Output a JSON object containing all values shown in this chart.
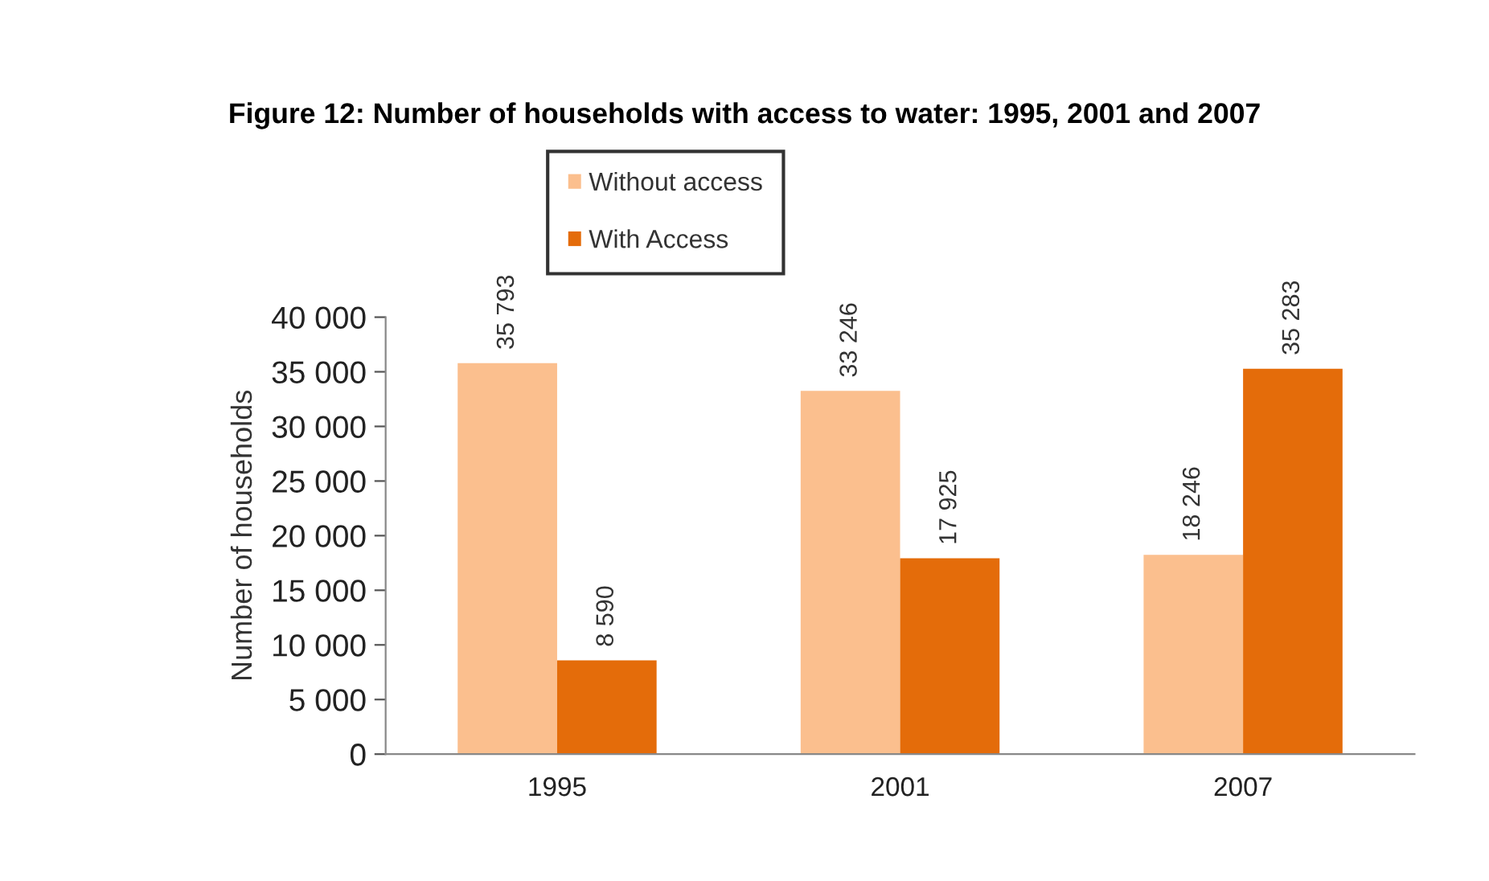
{
  "chart_data": {
    "type": "bar",
    "title": "Figure 12: Number of households with access to water: 1995, 2001 and 2007",
    "ylabel": "Number of households",
    "categories": [
      "1995",
      "2001",
      "2007"
    ],
    "series": [
      {
        "name": "Without access",
        "color": "#fbbf8e",
        "values": [
          35793,
          33246,
          18246
        ],
        "value_labels": [
          "35 793",
          "33 246",
          "18 246"
        ]
      },
      {
        "name": "With Access",
        "color": "#e46c0a",
        "values": [
          8590,
          17925,
          35283
        ],
        "value_labels": [
          "8 590",
          "17 925",
          "35 283"
        ]
      }
    ],
    "ylim": [
      0,
      40000
    ],
    "yticks": [
      0,
      {
        "value": 5000,
        "label": "5 000"
      },
      {
        "value": 10000,
        "label": "10 000"
      },
      {
        "value": 15000,
        "label": "15 000"
      },
      {
        "value": 20000,
        "label": "20 000"
      },
      {
        "value": 25000,
        "label": "25 000"
      },
      {
        "value": 30000,
        "label": "30 000"
      },
      {
        "value": 35000,
        "label": "35 000"
      },
      {
        "value": 40000,
        "label": "40 000"
      }
    ],
    "grid": false,
    "legend": "top"
  }
}
